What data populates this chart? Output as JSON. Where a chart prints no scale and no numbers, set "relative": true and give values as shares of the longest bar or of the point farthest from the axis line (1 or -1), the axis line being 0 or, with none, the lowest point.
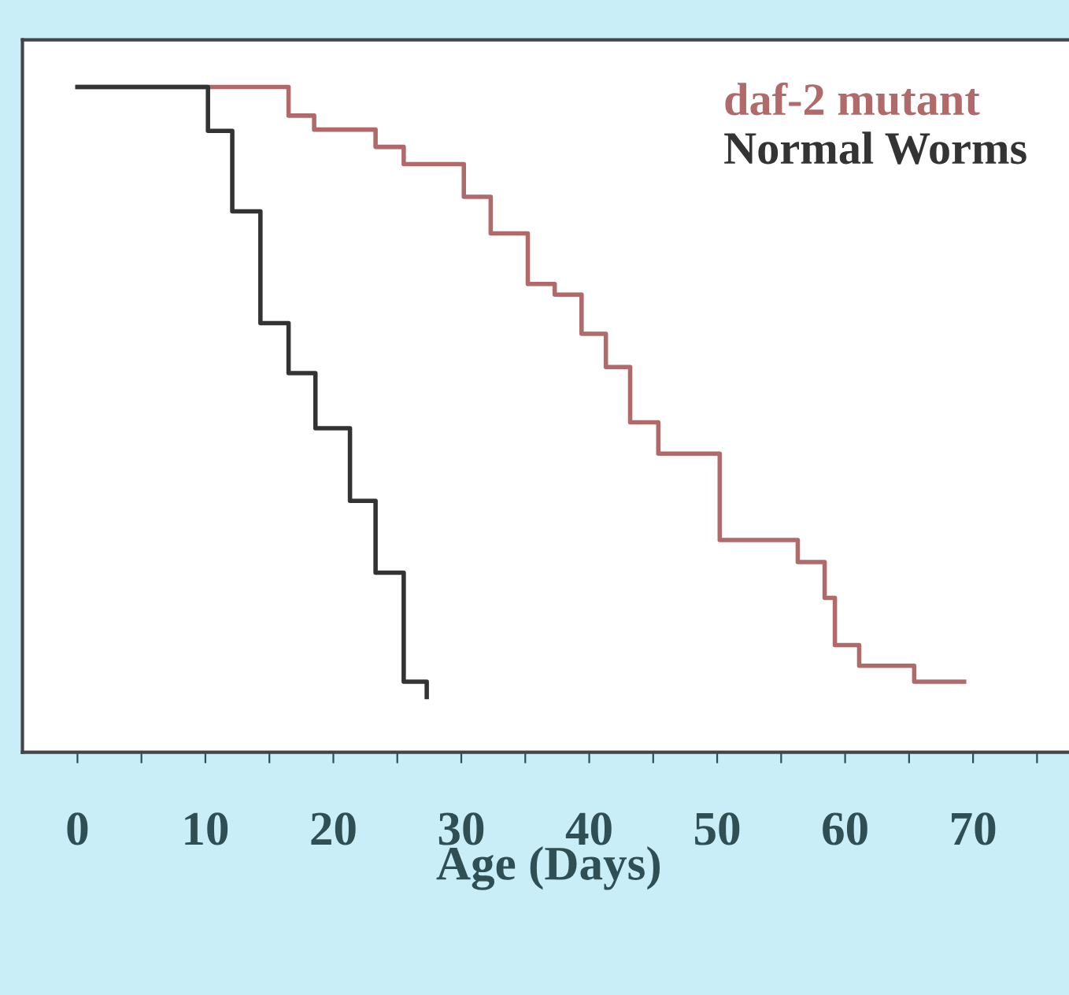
{
  "chart_data": {
    "type": "step",
    "relative": true,
    "xlabel": "Age (Days)",
    "xlim": [
      -4.3,
      78
    ],
    "xticks": [
      0,
      {
        "value": 5,
        "label": null
      },
      10,
      {
        "value": 15,
        "label": null
      },
      20,
      {
        "value": 25,
        "label": null
      },
      30,
      {
        "value": 35,
        "label": null
      },
      40,
      {
        "value": 45,
        "label": null
      },
      50,
      {
        "value": 55,
        "label": null
      },
      60,
      {
        "value": 65,
        "label": null
      },
      70,
      {
        "value": 75,
        "label": null
      }
    ],
    "legend": "top right",
    "grid": false,
    "line_style": "solid",
    "marker": "none",
    "series": [
      {
        "name": "daf-2 mutant",
        "color": "#b06a6a",
        "x": [
          0,
          16.5,
          18.5,
          23.3,
          25.5,
          30.2,
          32.3,
          35.2,
          37.3,
          39.4,
          41.3,
          43.2,
          45.4,
          50.2,
          56.3,
          58.4,
          59.2,
          61.1,
          65.4,
          69.3
        ],
        "values": [
          1,
          0.957,
          0.936,
          0.91,
          0.884,
          0.835,
          0.78,
          0.704,
          0.688,
          0.629,
          0.579,
          0.496,
          0.449,
          0.319,
          0.286,
          0.232,
          0.161,
          0.13,
          0.106,
          0.106
        ]
      },
      {
        "name": "Normal Worms",
        "color": "#333333",
        "x": [
          0,
          10.2,
          12.1,
          14.3,
          16.5,
          18.6,
          21.3,
          23.3,
          25.5,
          27.3
        ],
        "values": [
          1,
          0.934,
          0.813,
          0.645,
          0.57,
          0.487,
          0.378,
          0.27,
          0.106,
          0.083
        ]
      }
    ]
  }
}
